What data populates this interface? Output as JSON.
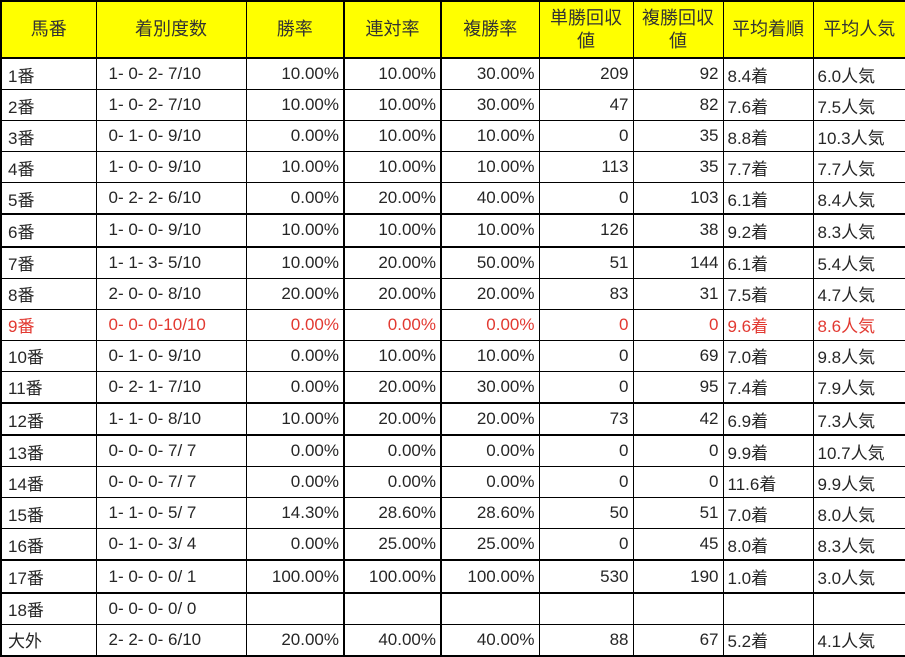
{
  "colors": {
    "header_bg": "#ffff00",
    "header_text": "#333333",
    "body_text": "#262626",
    "highlight_text": "#e23931",
    "grid_line": "#000000"
  },
  "table": {
    "columns": [
      {
        "key": "horse-number",
        "label": "馬番",
        "label_lines": [
          "馬番"
        ]
      },
      {
        "key": "finish-record",
        "label": "着別度数",
        "label_lines": [
          "着別度数"
        ]
      },
      {
        "key": "win-rate",
        "label": "勝率",
        "label_lines": [
          "勝率"
        ]
      },
      {
        "key": "quinella-rate",
        "label": "連対率",
        "label_lines": [
          "連対率"
        ]
      },
      {
        "key": "show-rate",
        "label": "複勝率",
        "label_lines": [
          "複勝率"
        ]
      },
      {
        "key": "win-payout",
        "label": "単勝回収値",
        "label_lines": [
          "単勝回収",
          "値"
        ]
      },
      {
        "key": "show-payout",
        "label": "複勝回収値",
        "label_lines": [
          "複勝回収",
          "値"
        ]
      },
      {
        "key": "avg-finish",
        "label": "平均着順",
        "label_lines": [
          "平均着順"
        ]
      },
      {
        "key": "avg-popularity",
        "label": "平均人気",
        "label_lines": [
          "平均人気"
        ]
      }
    ],
    "rows": [
      {
        "highlighted": false,
        "cells": [
          "1番",
          "1- 0- 2- 7/10",
          "10.00%",
          "10.00%",
          "30.00%",
          "209",
          "92",
          "8.4着",
          "6.0人気"
        ]
      },
      {
        "highlighted": false,
        "cells": [
          "2番",
          "1- 0- 2- 7/10",
          "10.00%",
          "10.00%",
          "30.00%",
          "47",
          "82",
          "7.6着",
          "7.5人気"
        ]
      },
      {
        "highlighted": false,
        "cells": [
          "3番",
          "0- 1- 0- 9/10",
          "0.00%",
          "10.00%",
          "10.00%",
          "0",
          "35",
          "8.8着",
          "10.3人気"
        ]
      },
      {
        "highlighted": false,
        "cells": [
          "4番",
          "1- 0- 0- 9/10",
          "10.00%",
          "10.00%",
          "10.00%",
          "113",
          "35",
          "7.7着",
          "7.7人気"
        ]
      },
      {
        "highlighted": false,
        "cells": [
          "5番",
          "0- 2- 2- 6/10",
          "0.00%",
          "20.00%",
          "40.00%",
          "0",
          "103",
          "6.1着",
          "8.4人気"
        ]
      },
      {
        "highlighted": false,
        "cells": [
          "6番",
          "1- 0- 0- 9/10",
          "10.00%",
          "10.00%",
          "10.00%",
          "126",
          "38",
          "9.2着",
          "8.3人気"
        ]
      },
      {
        "highlighted": false,
        "cells": [
          "7番",
          "1- 1- 3- 5/10",
          "10.00%",
          "20.00%",
          "50.00%",
          "51",
          "144",
          "6.1着",
          "5.4人気"
        ]
      },
      {
        "highlighted": false,
        "cells": [
          "8番",
          "2- 0- 0- 8/10",
          "20.00%",
          "20.00%",
          "20.00%",
          "83",
          "31",
          "7.5着",
          "4.7人気"
        ]
      },
      {
        "highlighted": true,
        "cells": [
          "9番",
          "0- 0- 0-10/10",
          "0.00%",
          "0.00%",
          "0.00%",
          "0",
          "0",
          "9.6着",
          "8.6人気"
        ]
      },
      {
        "highlighted": false,
        "cells": [
          "10番",
          "0- 1- 0- 9/10",
          "0.00%",
          "10.00%",
          "10.00%",
          "0",
          "69",
          "7.0着",
          "9.8人気"
        ]
      },
      {
        "highlighted": false,
        "cells": [
          "11番",
          "0- 2- 1- 7/10",
          "0.00%",
          "20.00%",
          "30.00%",
          "0",
          "95",
          "7.4着",
          "7.9人気"
        ]
      },
      {
        "highlighted": false,
        "cells": [
          "12番",
          "1- 1- 0- 8/10",
          "10.00%",
          "20.00%",
          "20.00%",
          "73",
          "42",
          "6.9着",
          "7.3人気"
        ]
      },
      {
        "highlighted": false,
        "cells": [
          "13番",
          "0- 0- 0- 7/ 7",
          "0.00%",
          "0.00%",
          "0.00%",
          "0",
          "0",
          "9.9着",
          "10.7人気"
        ]
      },
      {
        "highlighted": false,
        "cells": [
          "14番",
          "0- 0- 0- 7/ 7",
          "0.00%",
          "0.00%",
          "0.00%",
          "0",
          "0",
          "11.6着",
          "9.9人気"
        ]
      },
      {
        "highlighted": false,
        "cells": [
          "15番",
          "1- 1- 0- 5/ 7",
          "14.30%",
          "28.60%",
          "28.60%",
          "50",
          "51",
          "7.0着",
          "8.0人気"
        ]
      },
      {
        "highlighted": false,
        "cells": [
          "16番",
          "0- 1- 0- 3/ 4",
          "0.00%",
          "25.00%",
          "25.00%",
          "0",
          "45",
          "8.0着",
          "8.3人気"
        ]
      },
      {
        "highlighted": false,
        "cells": [
          "17番",
          "1- 0- 0- 0/ 1",
          "100.00%",
          "100.00%",
          "100.00%",
          "530",
          "190",
          "1.0着",
          "3.0人気"
        ]
      },
      {
        "highlighted": false,
        "cells": [
          "18番",
          "0- 0- 0- 0/ 0",
          "",
          "",
          "",
          "",
          "",
          "",
          ""
        ]
      },
      {
        "highlighted": false,
        "cells": [
          "大外",
          "2- 2- 0- 6/10",
          "20.00%",
          "40.00%",
          "40.00%",
          "88",
          "67",
          "5.2着",
          "4.1人気"
        ]
      }
    ]
  }
}
